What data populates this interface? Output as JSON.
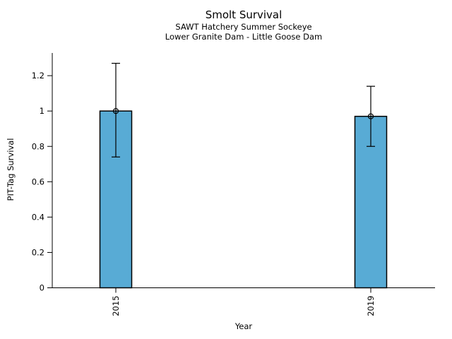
{
  "chart_data": {
    "type": "bar",
    "title": "Smolt Survival",
    "subtitle1": "SAWT Hatchery Summer Sockeye",
    "subtitle2": "Lower Granite Dam - Little Goose Dam",
    "xlabel": "Year",
    "ylabel": "PIT-Tag Survival",
    "categories": [
      "2015",
      "2019"
    ],
    "values": [
      1.0,
      0.97
    ],
    "error_low": [
      0.74,
      0.8
    ],
    "error_high": [
      1.27,
      1.14
    ],
    "yticks": [
      0,
      0.2,
      0.4,
      0.6,
      0.8,
      1,
      1.2
    ],
    "ytick_labels": [
      "0",
      "0.2",
      "0.4",
      "0.6",
      "0.8",
      "1",
      "1.2"
    ],
    "ylim": [
      0,
      1.33
    ],
    "grid": false,
    "legend": false,
    "bar_color": "#58ABD5",
    "bar_edge_color": "#000000",
    "marker": "open-circle",
    "xtick_label_rotation_deg": -90
  }
}
